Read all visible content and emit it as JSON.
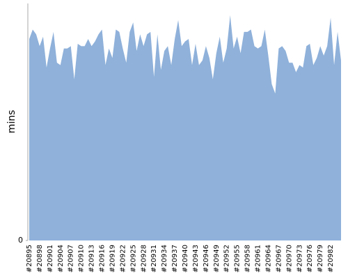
{
  "chart_data": {
    "type": "area",
    "y_label": "mins",
    "color": "#8fb1da",
    "categories": [
      "#20895",
      null,
      null,
      "#20898",
      null,
      null,
      "#20901",
      null,
      null,
      "#20904",
      null,
      null,
      "#20907",
      null,
      null,
      "#20910",
      null,
      null,
      "#20913",
      null,
      null,
      "#20916",
      null,
      null,
      "#20919",
      null,
      null,
      "#20922",
      null,
      null,
      "#20925",
      null,
      null,
      "#20928",
      null,
      null,
      "#20931",
      null,
      null,
      "#20934",
      null,
      null,
      "#20937",
      null,
      null,
      "#20940",
      null,
      null,
      "#20943",
      null,
      null,
      "#20946",
      null,
      null,
      "#20949",
      null,
      null,
      "#20952",
      null,
      null,
      "#20955",
      null,
      null,
      "#20958",
      null,
      null,
      "#20961",
      null,
      null,
      "#20964",
      null,
      null,
      "#20967",
      null,
      null,
      "#20970",
      null,
      null,
      "#20973",
      null,
      null,
      "#20976",
      null,
      null,
      "#20979",
      null,
      null,
      "#20982",
      null,
      null,
      null
    ],
    "values": [
      85,
      89,
      87,
      82,
      86,
      73,
      81,
      88,
      75,
      74,
      81,
      81,
      82,
      68,
      83,
      82,
      82,
      85,
      82,
      84,
      87,
      89,
      74,
      81,
      77,
      89,
      88,
      81,
      75,
      88,
      92,
      80,
      87,
      82,
      87,
      88,
      69,
      87,
      72,
      80,
      82,
      74,
      85,
      93,
      82,
      84,
      85,
      74,
      83,
      74,
      76,
      82,
      77,
      68,
      79,
      86,
      75,
      81,
      95,
      81,
      86,
      79,
      88,
      88,
      89,
      82,
      81,
      82,
      89,
      78,
      66,
      62,
      81,
      82,
      80,
      75,
      75,
      71,
      74,
      73,
      82,
      83,
      74,
      77,
      82,
      78,
      82,
      94,
      74,
      88,
      76
    ],
    "ylim": [
      0,
      100
    ],
    "yticks": [
      0
    ]
  }
}
